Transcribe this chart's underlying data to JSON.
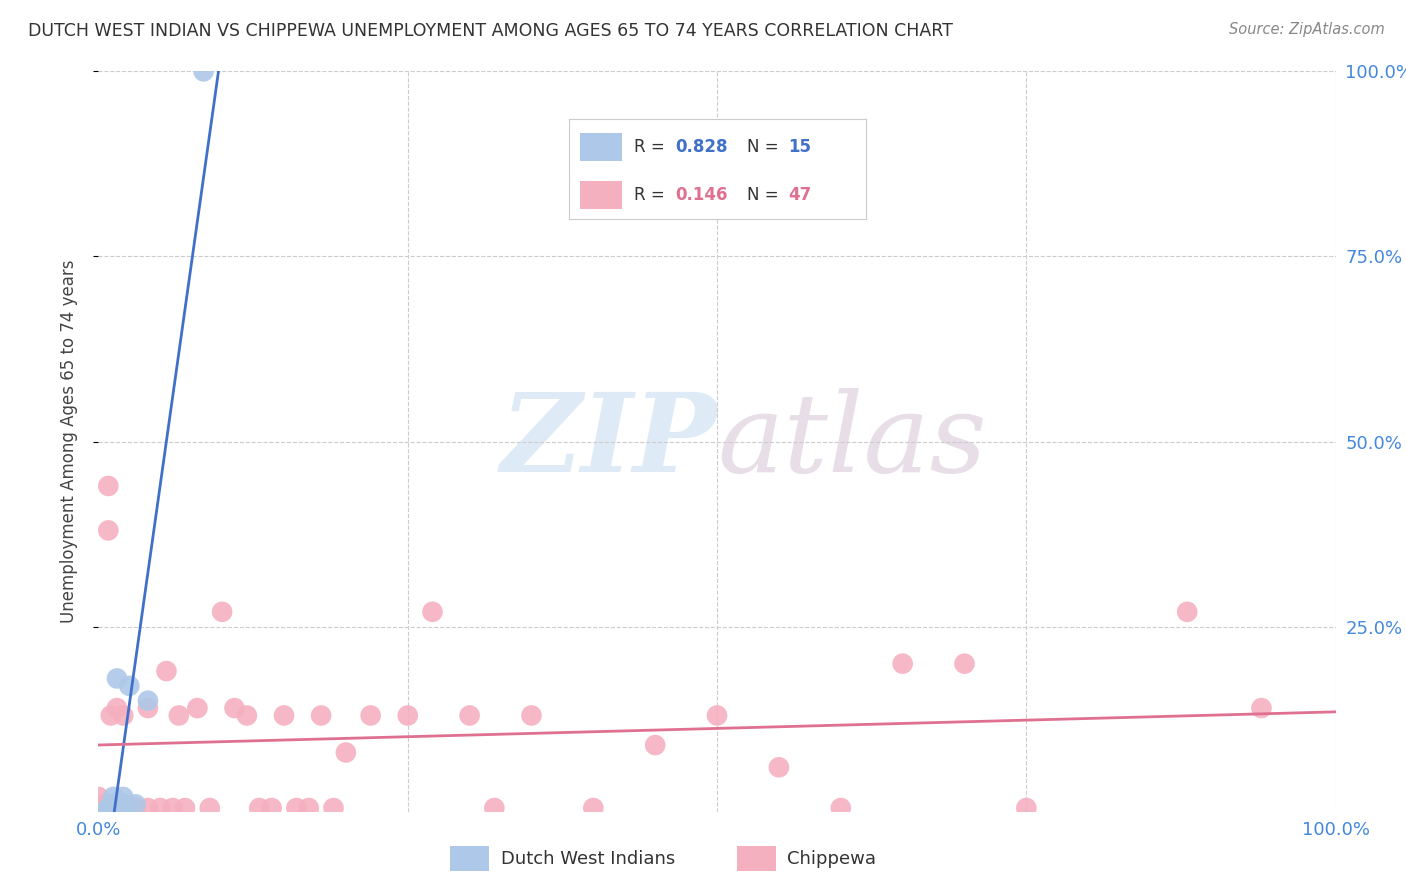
{
  "title": "DUTCH WEST INDIAN VS CHIPPEWA UNEMPLOYMENT AMONG AGES 65 TO 74 YEARS CORRELATION CHART",
  "source": "Source: ZipAtlas.com",
  "ylabel": "Unemployment Among Ages 65 to 74 years",
  "xlim": [
    0.0,
    1.0
  ],
  "ylim": [
    0.0,
    1.0
  ],
  "watermark_zip": "ZIP",
  "watermark_atlas": "atlas",
  "dutch_R": 0.828,
  "dutch_N": 15,
  "chippewa_R": 0.146,
  "chippewa_N": 47,
  "dutch_color": "#adc8e8",
  "chippewa_color": "#f5b0c0",
  "dutch_line_color": "#4070c8",
  "chippewa_line_color": "#e07090",
  "dutch_points_x": [
    0.005,
    0.008,
    0.01,
    0.01,
    0.012,
    0.012,
    0.015,
    0.015,
    0.017,
    0.02,
    0.022,
    0.025,
    0.03,
    0.04,
    0.085
  ],
  "dutch_points_y": [
    0.0,
    0.005,
    0.005,
    0.01,
    0.005,
    0.02,
    0.005,
    0.18,
    0.005,
    0.02,
    0.01,
    0.17,
    0.01,
    0.15,
    1.0
  ],
  "chippewa_points_x": [
    0.0,
    0.005,
    0.008,
    0.008,
    0.01,
    0.012,
    0.015,
    0.02,
    0.02,
    0.025,
    0.03,
    0.04,
    0.04,
    0.05,
    0.055,
    0.06,
    0.065,
    0.07,
    0.08,
    0.09,
    0.1,
    0.11,
    0.12,
    0.13,
    0.14,
    0.15,
    0.16,
    0.17,
    0.18,
    0.19,
    0.2,
    0.22,
    0.25,
    0.27,
    0.3,
    0.32,
    0.35,
    0.4,
    0.45,
    0.5,
    0.55,
    0.6,
    0.65,
    0.7,
    0.75,
    0.88,
    0.94
  ],
  "chippewa_points_y": [
    0.02,
    0.01,
    0.38,
    0.44,
    0.13,
    0.01,
    0.14,
    0.005,
    0.13,
    0.005,
    0.005,
    0.005,
    0.14,
    0.005,
    0.19,
    0.005,
    0.13,
    0.005,
    0.14,
    0.005,
    0.27,
    0.14,
    0.13,
    0.005,
    0.005,
    0.13,
    0.005,
    0.005,
    0.13,
    0.005,
    0.08,
    0.13,
    0.13,
    0.27,
    0.13,
    0.005,
    0.13,
    0.005,
    0.09,
    0.13,
    0.06,
    0.005,
    0.2,
    0.2,
    0.005,
    0.27,
    0.14
  ]
}
